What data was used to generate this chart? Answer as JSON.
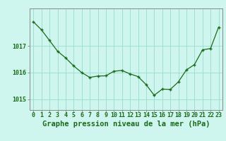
{
  "x": [
    0,
    1,
    2,
    3,
    4,
    5,
    6,
    7,
    8,
    9,
    10,
    11,
    12,
    13,
    14,
    15,
    16,
    17,
    18,
    19,
    20,
    21,
    22,
    23
  ],
  "y": [
    1017.9,
    1017.6,
    1017.2,
    1016.8,
    1016.55,
    1016.25,
    1016.0,
    1015.82,
    1015.87,
    1015.88,
    1016.05,
    1016.08,
    1015.95,
    1015.85,
    1015.55,
    1015.15,
    1015.38,
    1015.37,
    1015.65,
    1016.1,
    1016.3,
    1016.85,
    1016.9,
    1017.7
  ],
  "line_color": "#1a6b1a",
  "marker_color": "#1a6b1a",
  "bg_color": "#cef5ee",
  "grid_color": "#99ddcc",
  "text_color": "#1a6b1a",
  "xlabel": "Graphe pression niveau de la mer (hPa)",
  "ylim_min": 1014.6,
  "ylim_max": 1018.4,
  "yticks": [
    1015,
    1016,
    1017
  ],
  "xticks": [
    0,
    1,
    2,
    3,
    4,
    5,
    6,
    7,
    8,
    9,
    10,
    11,
    12,
    13,
    14,
    15,
    16,
    17,
    18,
    19,
    20,
    21,
    22,
    23
  ],
  "spine_color": "#888888",
  "xlabel_fontsize": 7.5,
  "tick_fontsize": 6.0
}
